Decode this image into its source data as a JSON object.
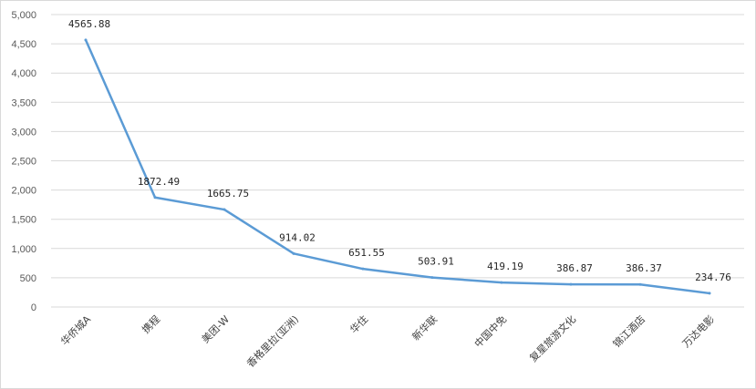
{
  "chart_data": {
    "type": "line",
    "title": "",
    "xlabel": "",
    "ylabel": "",
    "categories": [
      "华侨城A",
      "携程",
      "美团-W",
      "香格里拉(亚洲)",
      "华住",
      "新华联",
      "中国中免",
      "复星旅游文化",
      "锦江酒店",
      "万达电影"
    ],
    "series": [
      {
        "values": [
          4565.88,
          1872.49,
          1665.75,
          914.02,
          651.55,
          503.91,
          419.19,
          386.87,
          386.37,
          234.76
        ],
        "value_labels": [
          "4565.88",
          "1872.49",
          "1665.75",
          "914.02",
          "651.55",
          "503.91",
          "419.19",
          "386.87",
          "386.37",
          "234.76"
        ],
        "color": "#5b9bd5"
      }
    ],
    "ylim": [
      0,
      5000
    ],
    "yticks": [
      0,
      500,
      1000,
      1500,
      2000,
      2500,
      3000,
      3500,
      4000,
      4500,
      5000
    ],
    "ytick_labels": [
      "0",
      "500",
      "1,000",
      "1,500",
      "2,000",
      "2,500",
      "3,000",
      "3,500",
      "4,000",
      "4,500",
      "5,000"
    ],
    "grid": true,
    "legend": "none",
    "gridline_color": "#d9d9d9"
  }
}
